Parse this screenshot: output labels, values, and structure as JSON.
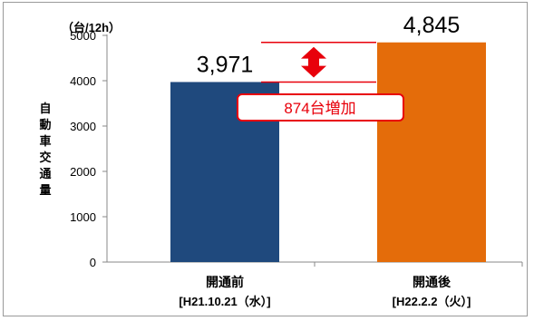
{
  "chart_data": {
    "type": "bar",
    "unit": "（台/12h）",
    "ylabel": "自動車交通量",
    "ylim": [
      0,
      5000
    ],
    "yticks": [
      0,
      1000,
      2000,
      3000,
      4000,
      5000
    ],
    "categories": [
      {
        "name": "開通前",
        "date": "[H21.10.21（水）]"
      },
      {
        "name": "開通後",
        "date": "[H22.2.2（火）]"
      }
    ],
    "values": [
      3971,
      4845
    ],
    "value_labels": [
      "3,971",
      "4,845"
    ],
    "bar_colors": [
      "#1f497d",
      "#e46c0a"
    ],
    "annotation": {
      "text": "874台増加",
      "color": "#e8000b"
    }
  }
}
